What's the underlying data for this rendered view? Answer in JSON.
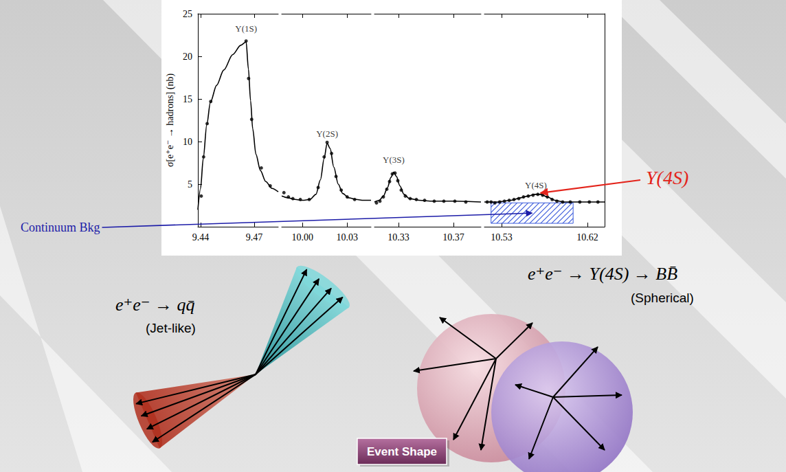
{
  "chart_data": [
    {
      "type": "line",
      "ylabel": "σ[e⁺e⁻ → hadrons] (nb)",
      "xlim": [
        9.4385,
        9.4835
      ],
      "xticks": [
        9.44,
        9.47
      ],
      "ylim": [
        0,
        25
      ],
      "yticks": [
        5,
        10,
        15,
        20,
        25
      ],
      "grid": false,
      "series": [
        {
          "type": "line",
          "color": "#000000",
          "line_style": "solid",
          "x": [
            9.4385,
            9.44,
            9.4415,
            9.4435,
            9.4455,
            9.449,
            9.453,
            9.458,
            9.4625,
            9.4655,
            9.4668,
            9.468,
            9.4692,
            9.471,
            9.4735,
            9.4765,
            9.48,
            9.4835
          ],
          "values": [
            2.0,
            4.5,
            8.0,
            12.0,
            14.6,
            16.6,
            18.4,
            20.2,
            21.3,
            21.7,
            18.5,
            14.8,
            11.5,
            8.5,
            6.6,
            5.3,
            4.5,
            4.1
          ]
        },
        {
          "type": "scatter",
          "color": "#000000",
          "marker": "circle",
          "x": [
            9.4404,
            9.4417,
            9.4437,
            9.4457,
            9.4655,
            9.4669,
            9.4686,
            9.474,
            9.479
          ],
          "values": [
            3.6,
            8.2,
            12.1,
            14.7,
            21.8,
            17.4,
            12.6,
            6.9,
            4.8
          ]
        }
      ],
      "annotations": [
        {
          "text": "Υ(1S)",
          "x": 9.4655,
          "y": 23.3
        }
      ]
    },
    {
      "type": "line",
      "tick_labels": "x",
      "xlim": [
        9.986,
        10.046
      ],
      "xticks": [
        {
          "value": 10,
          "label": "10.00"
        },
        10.03
      ],
      "ylim": [
        0,
        25
      ],
      "grid": false,
      "series": [
        {
          "type": "line",
          "color": "#000000",
          "line_style": "solid",
          "x": [
            9.986,
            9.99,
            9.995,
            10.0,
            10.005,
            10.009,
            10.012,
            10.0145,
            10.0165,
            10.0185,
            10.021,
            10.024,
            10.027,
            10.031,
            10.036,
            10.041,
            10.046
          ],
          "values": [
            3.6,
            3.4,
            3.2,
            3.1,
            3.2,
            3.8,
            5.5,
            8.0,
            9.8,
            9.2,
            7.0,
            5.0,
            3.9,
            3.4,
            3.2,
            3.1,
            3.1
          ]
        },
        {
          "type": "scatter",
          "color": "#000000",
          "marker": "circle",
          "x": [
            9.9875,
            9.9905,
            9.9935,
            9.9985,
            10.0045,
            10.0105,
            10.0145,
            10.0165,
            10.0195,
            10.0225,
            10.026,
            10.03,
            10.035
          ],
          "values": [
            4.0,
            3.5,
            3.3,
            3.2,
            3.2,
            4.6,
            8.2,
            9.9,
            8.6,
            5.9,
            4.3,
            3.5,
            3.2
          ]
        }
      ],
      "annotations": [
        {
          "text": "Υ(2S)",
          "x": 10.0165,
          "y": 10.9
        }
      ]
    },
    {
      "type": "line",
      "tick_labels": "x",
      "xlim": [
        10.3125,
        10.39
      ],
      "xticks": [
        10.33,
        10.37
      ],
      "ylim": [
        0,
        25
      ],
      "grid": false,
      "series": [
        {
          "type": "line",
          "color": "#000000",
          "line_style": "solid",
          "x": [
            10.3125,
            10.316,
            10.319,
            10.322,
            10.3245,
            10.3265,
            10.3285,
            10.331,
            10.334,
            10.338,
            10.345,
            10.355,
            10.37,
            10.39
          ],
          "values": [
            2.9,
            3.1,
            3.6,
            4.6,
            5.8,
            6.4,
            5.9,
            4.8,
            3.8,
            3.3,
            3.1,
            3.0,
            3.0,
            2.9
          ]
        },
        {
          "type": "scatter",
          "color": "#000000",
          "marker": "circle",
          "x": [
            10.314,
            10.3165,
            10.319,
            10.3215,
            10.3235,
            10.3255,
            10.3275,
            10.3295,
            10.332,
            10.335,
            10.3385,
            10.343,
            10.349,
            10.356,
            10.363,
            10.371,
            10.379
          ],
          "values": [
            2.8,
            3.0,
            3.5,
            4.4,
            5.3,
            6.2,
            6.3,
            5.4,
            4.3,
            3.6,
            3.3,
            3.2,
            3.1,
            3.0,
            3.0,
            3.0,
            2.9
          ]
        }
      ],
      "annotations": [
        {
          "text": "Υ(3S)",
          "x": 10.3265,
          "y": 7.9
        }
      ]
    },
    {
      "type": "line",
      "tick_labels": "x",
      "xlim": [
        10.512,
        10.638
      ],
      "xticks": [
        10.53,
        10.62
      ],
      "ylim": [
        0,
        25
      ],
      "grid": false,
      "series": [
        {
          "type": "line",
          "color": "#000000",
          "line_style": "solid",
          "x": [
            10.512,
            10.525,
            10.54,
            10.55,
            10.558,
            10.565,
            10.571,
            10.578,
            10.586,
            10.595,
            10.61,
            10.638
          ],
          "values": [
            2.9,
            2.9,
            3.1,
            3.4,
            3.6,
            3.8,
            3.8,
            3.5,
            3.1,
            2.9,
            2.9,
            2.9
          ]
        },
        {
          "type": "scatter",
          "color": "#000000",
          "marker": "circle",
          "x": [
            10.515,
            10.519,
            10.523,
            10.528,
            10.533,
            10.538,
            10.543,
            10.548,
            10.553,
            10.558,
            10.563,
            10.568,
            10.573,
            10.578,
            10.583,
            10.588,
            10.594,
            10.602,
            10.612,
            10.622,
            10.631
          ],
          "values": [
            2.9,
            2.9,
            2.8,
            2.9,
            3.0,
            3.1,
            3.2,
            3.3,
            3.5,
            3.6,
            3.7,
            3.8,
            3.7,
            3.5,
            3.2,
            3.0,
            2.9,
            2.9,
            2.9,
            2.9,
            2.9
          ]
        }
      ],
      "continuum_band": {
        "x": [
          10.519,
          10.605
        ],
        "y": [
          0.4,
          2.8
        ],
        "color": "#3b5bdb"
      },
      "annotations": [
        {
          "text": "Υ(4S)",
          "x": 10.566,
          "y": 4.9
        }
      ]
    }
  ],
  "slide": {
    "callouts": [
      {
        "text": "Υ(4S)",
        "color": "#e3241b"
      },
      {
        "text": "Continuum Bkg",
        "color": "#1c1ca8"
      }
    ],
    "illustrations": [
      {
        "formula": "e⁺e⁻ → qq̄",
        "caption": "(Jet-like)"
      },
      {
        "formula": "e⁺e⁻ → Υ(4S) → BB̄",
        "caption": "(Spherical)"
      }
    ],
    "button": "Event Shape"
  }
}
